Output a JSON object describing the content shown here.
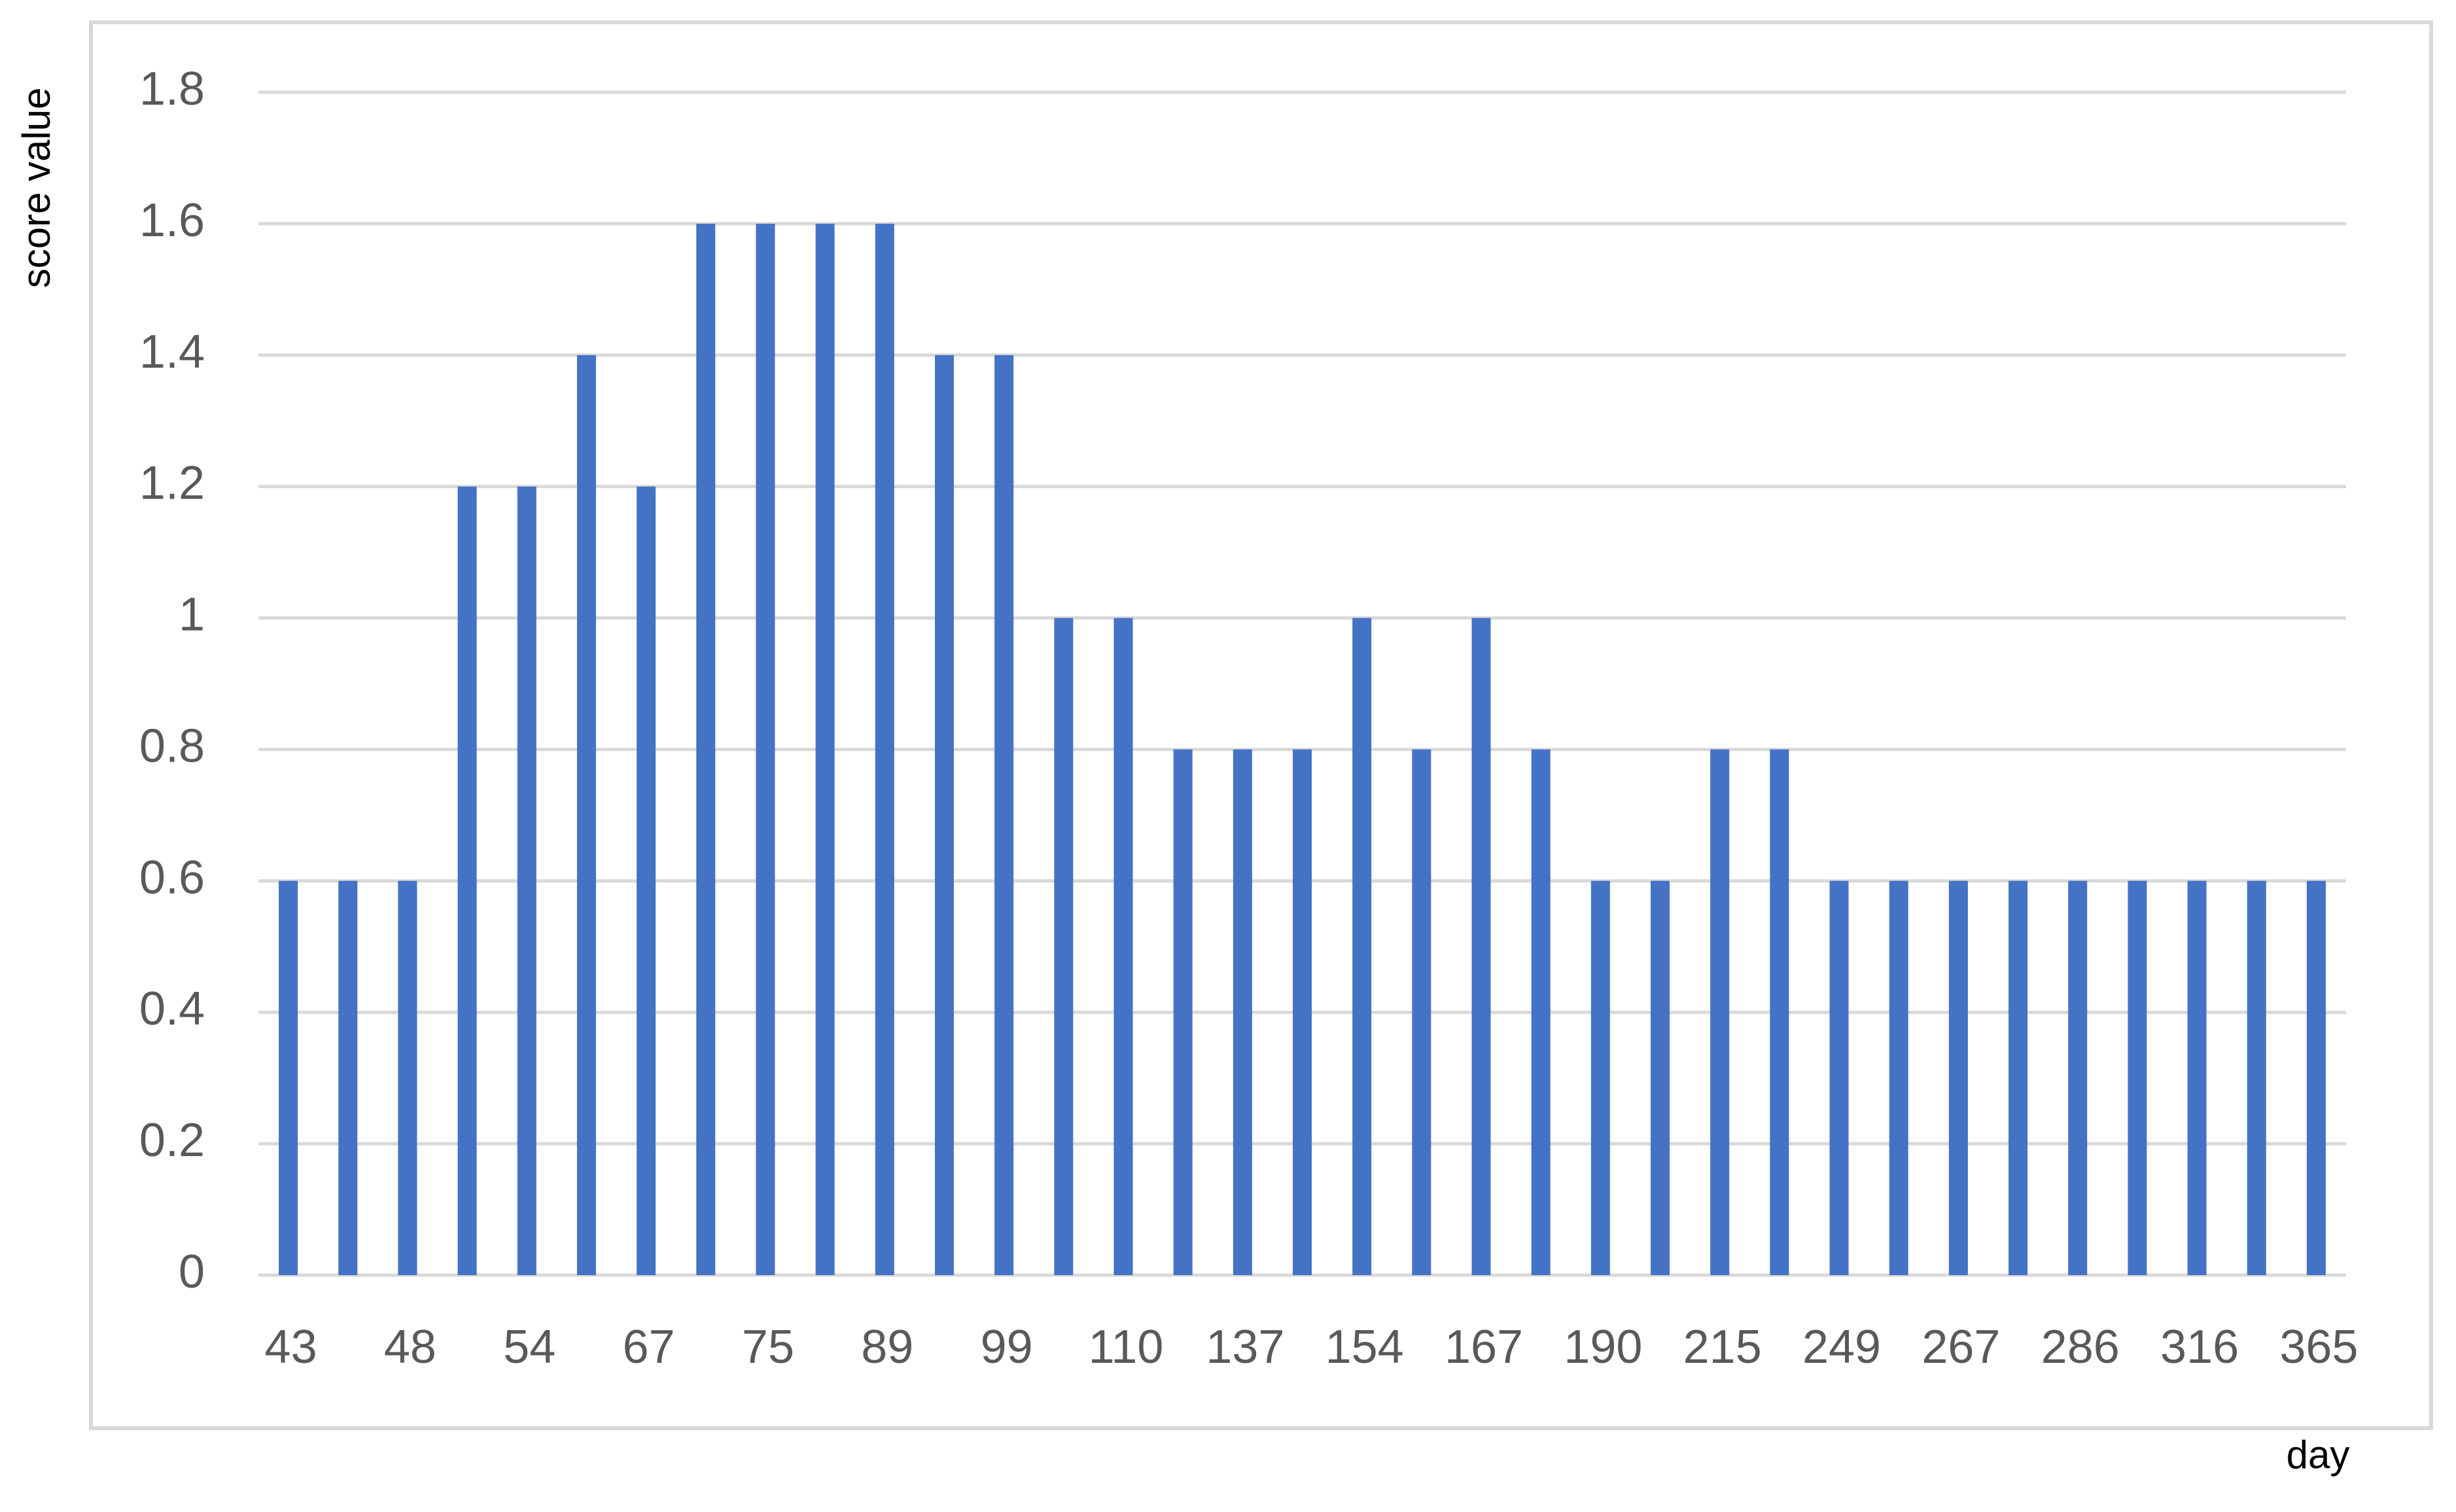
{
  "chart_data": {
    "type": "bar",
    "y_label": "score value",
    "x_label": "day",
    "categories": [
      "43",
      null,
      "48",
      null,
      "54",
      null,
      "67",
      null,
      "75",
      null,
      "89",
      null,
      "99",
      null,
      "110",
      null,
      "137",
      null,
      "154",
      null,
      "167",
      null,
      "190",
      null,
      "215",
      null,
      "249",
      null,
      "267",
      null,
      "286",
      null,
      "316",
      null,
      "365"
    ],
    "values": [
      0.6,
      0.6,
      0.6,
      1.2,
      1.2,
      1.4,
      1.2,
      1.6,
      1.6,
      1.6,
      1.6,
      1.4,
      1.4,
      1.0,
      1.0,
      0.8,
      0.8,
      0.8,
      1.0,
      0.8,
      1.0,
      0.8,
      0.6,
      0.6,
      0.8,
      0.8,
      0.6,
      0.6,
      0.6,
      0.6,
      0.6,
      0.6,
      0.6,
      0.6,
      0.6
    ],
    "color": "#4472c4",
    "ylim": [
      0,
      1.8
    ],
    "yticks": [
      0,
      0.2,
      0.4,
      0.6,
      0.8,
      1,
      1.2,
      1.4,
      1.6,
      1.8
    ],
    "grid": true
  }
}
